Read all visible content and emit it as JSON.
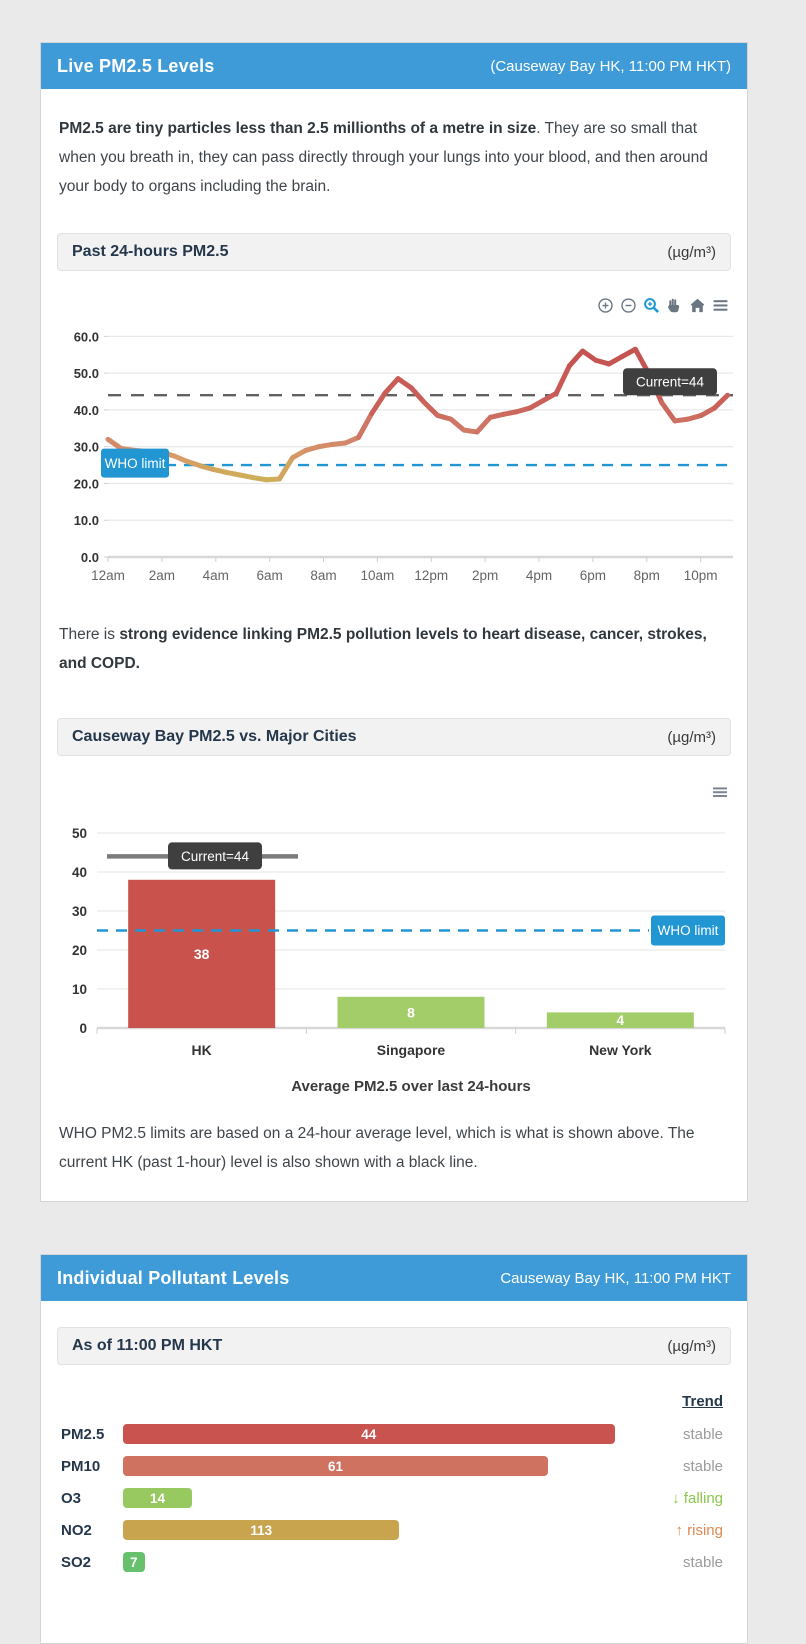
{
  "panel1": {
    "title": "Live PM2.5 Levels",
    "location": "(Causeway Bay HK, 11:00 PM HKT)",
    "intro_bold": "PM2.5 are tiny particles less than 2.5 millionths of a metre in size",
    "intro_rest": ". They are so small that when you breath in, they can pass directly through your lungs into your blood, and then around your body to organs including the brain.",
    "chart1_title": "Past 24-hours PM2.5",
    "chart1_unit": "(µg/m³)",
    "evidence_pre": "There is ",
    "evidence_bold": "strong evidence linking PM2.5 pollution levels to heart disease, cancer, strokes, and COPD.",
    "chart2_title": "Causeway Bay PM2.5 vs. Major Cities",
    "chart2_unit": "(µg/m³)",
    "who_note": "WHO PM2.5 limits are based on a 24-hour average level, which is what is shown above. The current HK (past 1-hour) level is also shown with a black line.",
    "toolbar_icons": [
      "zoom-in",
      "zoom-out",
      "box-zoom",
      "pan",
      "reset-home",
      "menu"
    ]
  },
  "panel2": {
    "title": "Individual Pollutant Levels",
    "location": "Causeway Bay HK, 11:00 PM HKT",
    "subheader_title": "As of 11:00 PM HKT",
    "subheader_unit": "(µg/m³)",
    "trend_header": "Trend",
    "pollutants": [
      {
        "name": "PM2.5",
        "value": "44",
        "bar_pct": 96,
        "color": "#c9544f",
        "trend": "stable",
        "trend_type": "stable"
      },
      {
        "name": "PM10",
        "value": "61",
        "bar_pct": 83,
        "color": "#cf7260",
        "trend": "stable",
        "trend_type": "stable"
      },
      {
        "name": "O3",
        "value": "14",
        "bar_pct": 13.5,
        "color": "#97c960",
        "trend": "↓ falling",
        "trend_type": "falling"
      },
      {
        "name": "NO2",
        "value": "113",
        "bar_pct": 54,
        "color": "#c8a44f",
        "trend": "↑ rising",
        "trend_type": "rising"
      },
      {
        "name": "SO2",
        "value": "7",
        "bar_pct": 4.2,
        "color": "#67c16c",
        "trend": "stable",
        "trend_type": "stable"
      }
    ]
  },
  "chart_data": [
    {
      "type": "line",
      "title": "Past 24-hours PM2.5",
      "unit": "µg/m³",
      "x_ticks": [
        "12am",
        "2am",
        "4am",
        "6am",
        "8am",
        "10am",
        "12pm",
        "2pm",
        "4pm",
        "6pm",
        "8pm",
        "10pm"
      ],
      "y_ticks": [
        "0.0",
        "10.0",
        "20.0",
        "30.0",
        "40.0",
        "50.0",
        "60.0"
      ],
      "ylim": [
        0,
        62
      ],
      "x_hours_span": 23,
      "values": [
        32,
        29.5,
        29,
        28.7,
        28.5,
        27.5,
        26,
        24.8,
        23.8,
        23,
        22.3,
        21.6,
        21,
        21.2,
        27,
        29,
        30,
        30.6,
        31,
        32.5,
        39,
        44.5,
        48.5,
        46,
        42,
        38.5,
        37.5,
        34.5,
        34,
        38,
        38.8,
        39.5,
        40.5,
        42.5,
        44.5,
        52,
        56,
        53.5,
        52.5,
        54.5,
        56.5,
        50,
        42,
        37,
        37.5,
        38.5,
        40.5,
        44
      ],
      "current": {
        "value": 44,
        "label": "Current=44",
        "color": "#616161"
      },
      "who": {
        "value": 25,
        "label": "WHO limit",
        "color": "#2196d3"
      },
      "color_stops": [
        [
          20,
          "#ccb355"
        ],
        [
          27,
          "#d79b68"
        ],
        [
          33,
          "#d1806a"
        ],
        [
          42,
          "#c9605a"
        ],
        [
          57,
          "#c4514f"
        ]
      ]
    },
    {
      "type": "bar",
      "categories": [
        "HK",
        "Singapore",
        "New York"
      ],
      "values": [
        38,
        8,
        4
      ],
      "bar_colors": [
        "#c9534c",
        "#a3cd69",
        "#a3cd69"
      ],
      "xlabel": "Average PM2.5 over last 24-hours",
      "y_ticks": [
        0,
        10,
        20,
        30,
        40,
        50
      ],
      "ylim": [
        0,
        55
      ],
      "current": {
        "value": 44,
        "label": "Current=44",
        "color": "#7b7b7b"
      },
      "who": {
        "value": 25,
        "label": "WHO limit",
        "color": "#2196d3"
      }
    }
  ]
}
